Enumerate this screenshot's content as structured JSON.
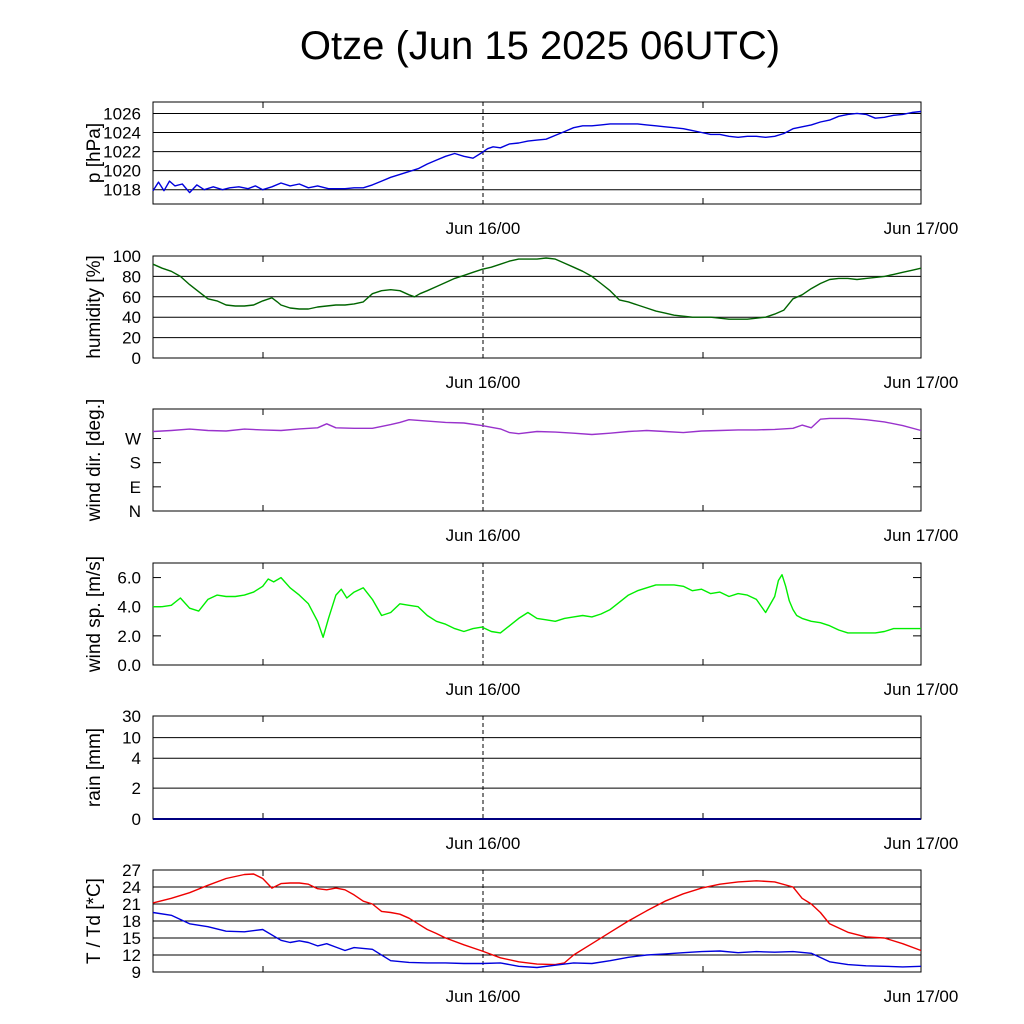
{
  "title": "Otze (Jun 15 2025 06UTC)",
  "x_tick_labels": [
    "Jun 16/00",
    "Jun 17/00"
  ],
  "chart_data": [
    {
      "type": "line",
      "ylabel": "p [hPa]",
      "ylim": [
        1016.5,
        1027.2
      ],
      "yticks": [
        1018,
        1020,
        1022,
        1024,
        1026
      ],
      "ytick_labels": [
        "1018",
        "1020",
        "1022",
        "1024",
        "1026"
      ],
      "grid": true,
      "xlim_hours": [
        0,
        42
      ],
      "series": [
        {
          "color": "#0000dd",
          "x": [
            0,
            0.3,
            0.6,
            0.9,
            1.2,
            1.6,
            2,
            2.4,
            2.8,
            3.3,
            3.8,
            4.2,
            4.7,
            5.2,
            5.6,
            6,
            6.5,
            7,
            7.5,
            8,
            8.5,
            9,
            9.6,
            10,
            10.5,
            11,
            11.5,
            12,
            12.5,
            13,
            13.5,
            14,
            14.5,
            15,
            15.5,
            16,
            16.5,
            17,
            17.5,
            18,
            18.3,
            18.6,
            19,
            19.5,
            20,
            20.5,
            21,
            21.5,
            22,
            22.5,
            23,
            23.5,
            24,
            24.5,
            25,
            25.5,
            26,
            26.5,
            27,
            27.5,
            28,
            28.5,
            29,
            29.5,
            30,
            30.5,
            31,
            31.5,
            32,
            32.5,
            33,
            33.5,
            34,
            34.5,
            35,
            35.5,
            36,
            36.5,
            37,
            37.5,
            38,
            38.5,
            39,
            39.5,
            40,
            40.5,
            41,
            41.5,
            42
          ],
          "y": [
            1017.9,
            1018.8,
            1017.9,
            1018.9,
            1018.4,
            1018.6,
            1017.7,
            1018.5,
            1018.0,
            1018.3,
            1018.0,
            1018.2,
            1018.3,
            1018.1,
            1018.4,
            1018.0,
            1018.3,
            1018.7,
            1018.4,
            1018.6,
            1018.2,
            1018.4,
            1018.1,
            1018.1,
            1018.1,
            1018.2,
            1018.2,
            1018.5,
            1018.9,
            1019.3,
            1019.6,
            1019.9,
            1020.2,
            1020.7,
            1021.1,
            1021.5,
            1021.8,
            1021.5,
            1021.3,
            1021.9,
            1022.3,
            1022.5,
            1022.4,
            1022.8,
            1022.9,
            1023.1,
            1023.2,
            1023.3,
            1023.7,
            1024.1,
            1024.5,
            1024.7,
            1024.7,
            1024.8,
            1024.9,
            1024.9,
            1024.9,
            1024.9,
            1024.8,
            1024.7,
            1024.6,
            1024.5,
            1024.4,
            1024.2,
            1024.0,
            1023.8,
            1023.8,
            1023.6,
            1023.5,
            1023.6,
            1023.6,
            1023.5,
            1023.6,
            1023.9,
            1024.4,
            1024.6,
            1024.8,
            1025.1,
            1025.3,
            1025.7,
            1025.9,
            1026.0,
            1025.9,
            1025.5,
            1025.6,
            1025.8,
            1025.9,
            1026.1,
            1026.2
          ]
        }
      ]
    },
    {
      "type": "line",
      "ylabel": "humidity [%]",
      "ylim": [
        0,
        100
      ],
      "yticks": [
        0,
        20,
        40,
        60,
        80,
        100
      ],
      "ytick_labels": [
        "0",
        "20",
        "40",
        "60",
        "80",
        "100"
      ],
      "grid": true,
      "xlim_hours": [
        0,
        42
      ],
      "series": [
        {
          "color": "#006400",
          "x": [
            0,
            0.5,
            1,
            1.5,
            2,
            2.5,
            3,
            3.5,
            4,
            4.5,
            5,
            5.5,
            6,
            6.5,
            6.8,
            7,
            7.5,
            8,
            8.5,
            9,
            9.5,
            10,
            10.5,
            11,
            11.5,
            12,
            12.5,
            13,
            13.5,
            14,
            14.3,
            14.6,
            15,
            15.5,
            16,
            16.5,
            17,
            17.5,
            18,
            18.5,
            19,
            19.5,
            20,
            20.5,
            21,
            21.5,
            22,
            22.5,
            23,
            23.5,
            24,
            24.5,
            25,
            25.5,
            26,
            26.5,
            27,
            27.5,
            28,
            28.5,
            29,
            29.5,
            30,
            30.5,
            31,
            31.5,
            32,
            32.5,
            33,
            33.5,
            34,
            34.5,
            35,
            35.5,
            36,
            36.5,
            37,
            37.5,
            38,
            38.5,
            39,
            39.5,
            40,
            40.5,
            41,
            41.5,
            42
          ],
          "y": [
            92,
            88,
            85,
            80,
            72,
            65,
            58,
            56,
            52,
            51,
            51,
            52,
            56,
            59,
            55,
            52,
            49,
            48,
            48,
            50,
            51,
            52,
            52,
            53,
            55,
            63,
            66,
            67,
            66,
            62,
            60,
            63,
            66,
            70,
            74,
            78,
            81,
            84,
            87,
            89,
            92,
            95,
            97,
            97,
            97,
            98,
            97,
            93,
            89,
            85,
            80,
            73,
            66,
            57,
            55,
            52,
            49,
            46,
            44,
            42,
            41,
            40,
            40,
            40,
            39,
            38,
            38,
            38,
            39,
            40,
            43,
            47,
            58,
            62,
            68,
            73,
            77,
            78,
            78,
            77,
            78,
            79,
            80,
            82,
            84,
            86,
            88
          ]
        }
      ]
    },
    {
      "type": "line",
      "ylabel": "wind dir. [deg.]",
      "ylim": [
        0,
        380
      ],
      "yticks": [
        0,
        90,
        180,
        270
      ],
      "ytick_labels": [
        "N",
        "E",
        "S",
        "W"
      ],
      "grid": false,
      "xlim_hours": [
        0,
        42
      ],
      "series": [
        {
          "color": "#9932cc",
          "x": [
            0,
            1,
            2,
            3,
            4,
            5,
            6,
            7,
            8,
            9,
            9.5,
            10,
            11,
            12,
            12.5,
            13,
            13.5,
            14,
            15,
            16,
            17,
            18,
            18.5,
            19,
            19.5,
            20,
            21,
            22,
            23,
            24,
            25,
            26,
            27,
            28,
            29,
            30,
            31,
            32,
            33,
            34,
            35,
            35.5,
            36,
            36.5,
            37,
            38,
            39,
            40,
            41,
            42
          ],
          "y": [
            296,
            300,
            305,
            300,
            298,
            305,
            302,
            300,
            306,
            310,
            325,
            310,
            308,
            308,
            315,
            322,
            330,
            340,
            335,
            330,
            328,
            318,
            312,
            306,
            292,
            288,
            296,
            294,
            290,
            285,
            290,
            296,
            300,
            296,
            292,
            298,
            300,
            302,
            302,
            304,
            308,
            320,
            310,
            342,
            345,
            345,
            340,
            332,
            318,
            300
          ]
        }
      ]
    },
    {
      "type": "line",
      "ylabel": "wind sp. [m/s]",
      "ylim": [
        0,
        7
      ],
      "yticks": [
        0,
        2,
        4,
        6
      ],
      "ytick_labels": [
        "0.0",
        "2.0",
        "4.0",
        "6.0"
      ],
      "grid": false,
      "xlim_hours": [
        0,
        42
      ],
      "series": [
        {
          "color": "#00ee00",
          "x": [
            0,
            0.5,
            1,
            1.5,
            2,
            2.5,
            3,
            3.5,
            4,
            4.5,
            5,
            5.5,
            6,
            6.3,
            6.6,
            7,
            7.5,
            8,
            8.5,
            9,
            9.3,
            9.6,
            10,
            10.3,
            10.6,
            11,
            11.5,
            12,
            12.5,
            13,
            13.5,
            14,
            14.5,
            15,
            15.5,
            16,
            16.5,
            17,
            17.5,
            18,
            18.5,
            19,
            19.5,
            20,
            20.5,
            21,
            21.5,
            22,
            22.5,
            23,
            23.5,
            24,
            24.5,
            25,
            25.5,
            26,
            26.5,
            27,
            27.5,
            28,
            28.5,
            29,
            29.5,
            30,
            30.5,
            31,
            31.5,
            32,
            32.5,
            33,
            33.5,
            34,
            34.2,
            34.4,
            34.6,
            34.8,
            35,
            35.2,
            35.5,
            36,
            36.5,
            37,
            37.5,
            38,
            38.5,
            39,
            39.5,
            40,
            40.5,
            41,
            41.5,
            42
          ],
          "y": [
            4.0,
            4.0,
            4.1,
            4.6,
            3.9,
            3.7,
            4.5,
            4.8,
            4.7,
            4.7,
            4.8,
            5.0,
            5.4,
            5.9,
            5.7,
            6.0,
            5.3,
            4.8,
            4.2,
            3.0,
            1.9,
            3.2,
            4.8,
            5.2,
            4.6,
            5.0,
            5.3,
            4.5,
            3.4,
            3.6,
            4.2,
            4.1,
            4.0,
            3.4,
            3.0,
            2.8,
            2.5,
            2.3,
            2.5,
            2.6,
            2.3,
            2.2,
            2.7,
            3.2,
            3.6,
            3.2,
            3.1,
            3.0,
            3.2,
            3.3,
            3.4,
            3.3,
            3.5,
            3.8,
            4.3,
            4.8,
            5.1,
            5.3,
            5.5,
            5.5,
            5.5,
            5.4,
            5.1,
            5.2,
            4.9,
            5.0,
            4.7,
            4.9,
            4.8,
            4.5,
            3.6,
            4.7,
            5.8,
            6.2,
            5.4,
            4.4,
            3.8,
            3.4,
            3.2,
            3.0,
            2.9,
            2.7,
            2.4,
            2.2,
            2.2,
            2.2,
            2.2,
            2.3,
            2.5,
            2.5,
            2.5,
            2.5
          ]
        }
      ]
    },
    {
      "type": "line",
      "ylabel": "rain [mm]",
      "ylim": [
        0,
        31
      ],
      "yticks": [
        0,
        2,
        4,
        10,
        30
      ],
      "ytick_labels": [
        "0",
        "2",
        "4",
        "10",
        "30"
      ],
      "grid": true,
      "xlim_hours": [
        0,
        42
      ],
      "series": [
        {
          "color": "#000080",
          "x": [
            0,
            42
          ],
          "y": [
            0,
            0
          ]
        }
      ]
    },
    {
      "type": "line",
      "ylabel": "T / Td [*C]",
      "ylim": [
        9,
        27
      ],
      "yticks": [
        9,
        12,
        15,
        18,
        21,
        24,
        27
      ],
      "ytick_labels": [
        "9",
        "12",
        "15",
        "18",
        "21",
        "24",
        "27"
      ],
      "grid": true,
      "xlim_hours": [
        0,
        42
      ],
      "series": [
        {
          "color": "#ee0000",
          "x": [
            0,
            1,
            2,
            3,
            4,
            5,
            5.5,
            6,
            6.5,
            7,
            7.5,
            8,
            8.5,
            9,
            9.5,
            10,
            10.5,
            11,
            11.5,
            12,
            12.5,
            13,
            13.5,
            14,
            14.5,
            15,
            15.5,
            16,
            17,
            18,
            19,
            20,
            21,
            22,
            22.5,
            23,
            24,
            25,
            26,
            27,
            28,
            29,
            30,
            31,
            32,
            33,
            34,
            35,
            35.5,
            36,
            36.5,
            37,
            38,
            39,
            40,
            41,
            42
          ],
          "y": [
            21.2,
            22.0,
            23.0,
            24.3,
            25.5,
            26.2,
            26.3,
            25.5,
            23.8,
            24.6,
            24.7,
            24.7,
            24.5,
            23.7,
            23.5,
            23.8,
            23.5,
            22.6,
            21.5,
            21.0,
            19.7,
            19.5,
            19.2,
            18.5,
            17.5,
            16.5,
            15.8,
            15.0,
            13.8,
            12.7,
            11.5,
            10.8,
            10.4,
            10.3,
            10.6,
            12.0,
            14.0,
            16.0,
            18.0,
            19.8,
            21.5,
            22.8,
            23.8,
            24.5,
            24.9,
            25.1,
            24.9,
            24.0,
            22.0,
            21.0,
            19.5,
            17.5,
            16.0,
            15.2,
            15.0,
            14.0,
            12.8
          ]
        },
        {
          "color": "#0000dd",
          "x": [
            0,
            1,
            2,
            3,
            4,
            5,
            6,
            7,
            7.5,
            8,
            8.5,
            9,
            9.5,
            10,
            10.5,
            11,
            12,
            13,
            14,
            15,
            16,
            17,
            18,
            19,
            20,
            21,
            22,
            23,
            24,
            25,
            26,
            27,
            28,
            29,
            30,
            31,
            32,
            33,
            34,
            35,
            36,
            37,
            38,
            39,
            40,
            41,
            42
          ],
          "y": [
            19.5,
            19.0,
            17.5,
            17.0,
            16.2,
            16.1,
            16.5,
            14.6,
            14.2,
            14.5,
            14.2,
            13.6,
            14.0,
            13.4,
            12.8,
            13.3,
            13.0,
            11.0,
            10.7,
            10.6,
            10.6,
            10.5,
            10.5,
            10.6,
            10.0,
            9.8,
            10.2,
            10.6,
            10.5,
            11.0,
            11.6,
            12.0,
            12.2,
            12.4,
            12.6,
            12.7,
            12.4,
            12.6,
            12.5,
            12.6,
            12.3,
            10.8,
            10.3,
            10.1,
            10.0,
            9.9,
            10.0
          ]
        }
      ]
    }
  ]
}
